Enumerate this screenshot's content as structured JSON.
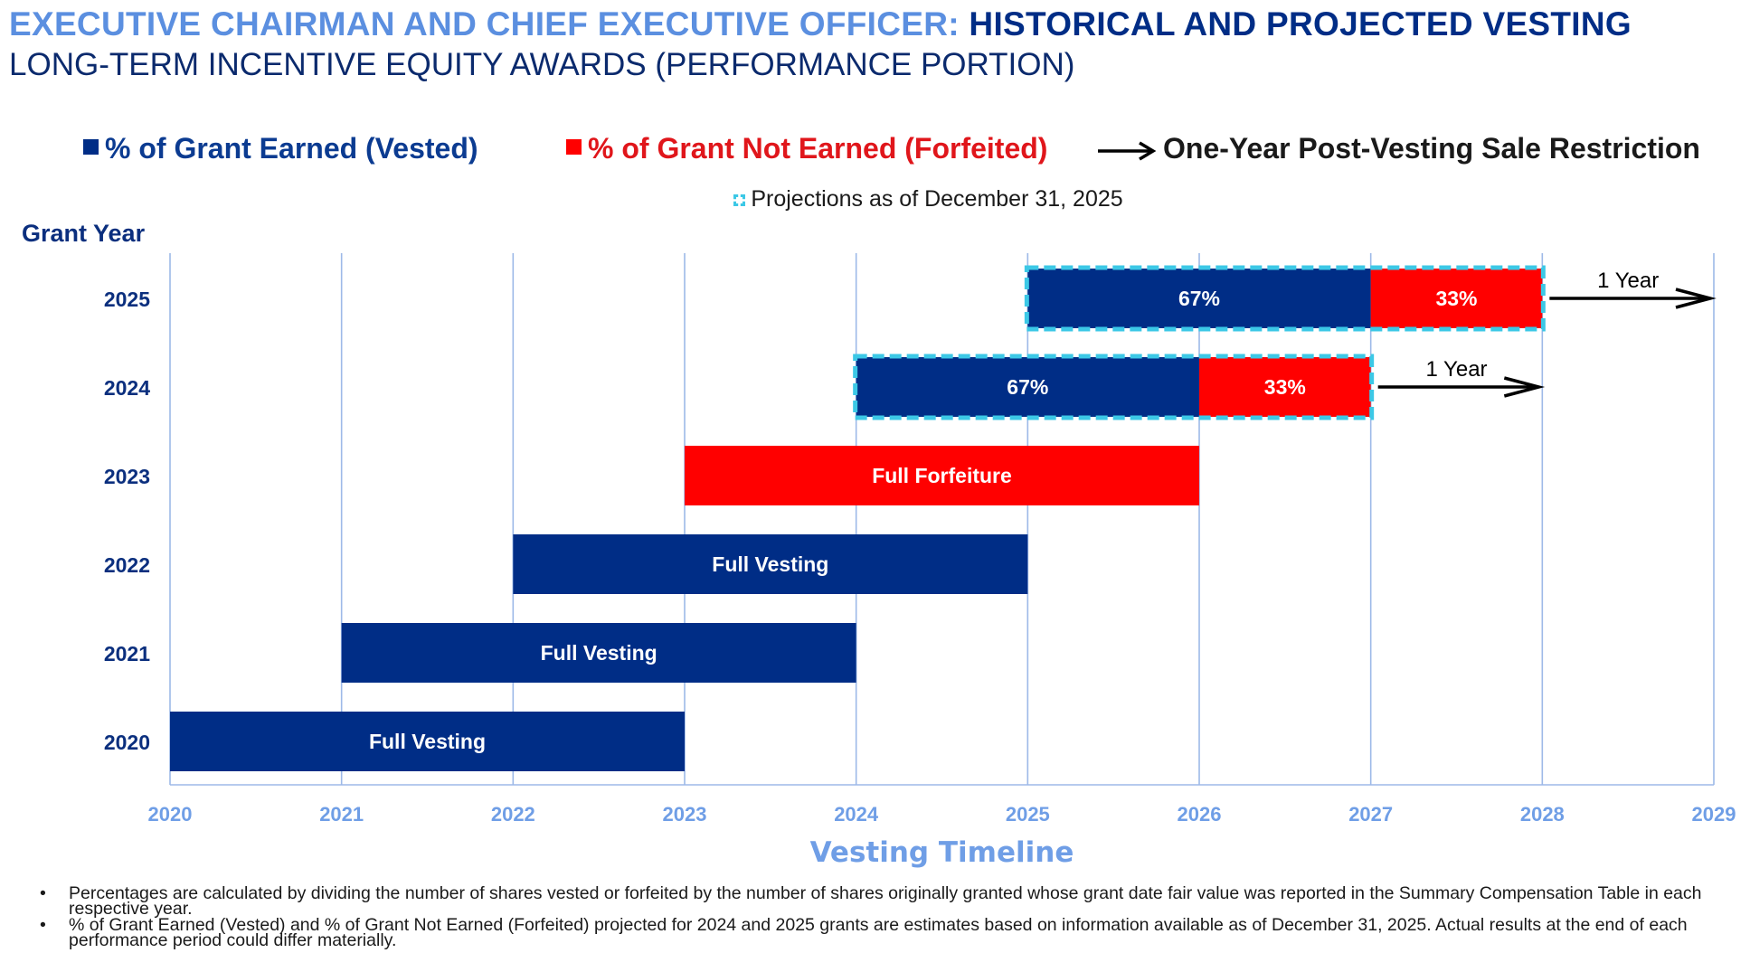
{
  "title": {
    "part1": "EXECUTIVE CHAIRMAN AND CHIEF EXECUTIVE OFFICER: ",
    "part2": "HISTORICAL AND PROJECTED VESTING",
    "subtitle": "LONG-TERM INCENTIVE EQUITY AWARDS (PERFORMANCE PORTION)"
  },
  "legend": {
    "vested": "% of Grant Earned (Vested)",
    "forfeited": "% of Grant Not Earned (Forfeited)",
    "restriction": "One-Year Post-Vesting Sale Restriction",
    "projection_word": "Projections",
    "projection_rest": " as of December 31, 2025"
  },
  "colors": {
    "vested": "#002d86",
    "forfeited": "#ff0000",
    "projection_border": "#3cc8e6",
    "grid": "#9db9e8",
    "axis_text": "#6f9ee6",
    "ylabel": "#0b2f7e"
  },
  "chart_data": {
    "type": "bar",
    "orientation": "horizontal-gantt",
    "ylabel": "Grant Year",
    "xlabel": "Vesting Timeline",
    "xlim": [
      2020,
      2029
    ],
    "x_ticks": [
      "2020",
      "2021",
      "2022",
      "2023",
      "2024",
      "2025",
      "2026",
      "2027",
      "2028",
      "2029"
    ],
    "rows": [
      {
        "grant_year": "2025",
        "segments": [
          {
            "start": 2025,
            "end": 2027,
            "status": "vested",
            "label": "67%"
          },
          {
            "start": 2027,
            "end": 2028,
            "status": "forfeited",
            "label": "33%"
          }
        ],
        "projected": true,
        "restriction": {
          "start": 2028,
          "end": 2029,
          "label": "1 Year"
        }
      },
      {
        "grant_year": "2024",
        "segments": [
          {
            "start": 2024,
            "end": 2026,
            "status": "vested",
            "label": "67%"
          },
          {
            "start": 2026,
            "end": 2027,
            "status": "forfeited",
            "label": "33%"
          }
        ],
        "projected": true,
        "restriction": {
          "start": 2027,
          "end": 2028,
          "label": "1 Year"
        }
      },
      {
        "grant_year": "2023",
        "segments": [
          {
            "start": 2023,
            "end": 2026,
            "status": "forfeited",
            "label": "Full Forfeiture"
          }
        ],
        "projected": false
      },
      {
        "grant_year": "2022",
        "segments": [
          {
            "start": 2022,
            "end": 2025,
            "status": "vested",
            "label": "Full Vesting"
          }
        ],
        "projected": false
      },
      {
        "grant_year": "2021",
        "segments": [
          {
            "start": 2021,
            "end": 2024,
            "status": "vested",
            "label": "Full Vesting"
          }
        ],
        "projected": false
      },
      {
        "grant_year": "2020",
        "segments": [
          {
            "start": 2020,
            "end": 2023,
            "status": "vested",
            "label": "Full Vesting"
          }
        ],
        "projected": false
      }
    ]
  },
  "footnotes": [
    "Percentages are calculated by dividing the number of shares vested or forfeited by the number of shares originally granted whose grant date fair value was reported in the Summary Compensation Table in each respective year.",
    "% of Grant Earned (Vested) and % of Grant Not Earned (Forfeited) projected for 2024 and 2025 grants are estimates based on information available as of December 31, 2025. Actual results at the end of each performance period could differ materially."
  ],
  "footnote_bullet": "•"
}
